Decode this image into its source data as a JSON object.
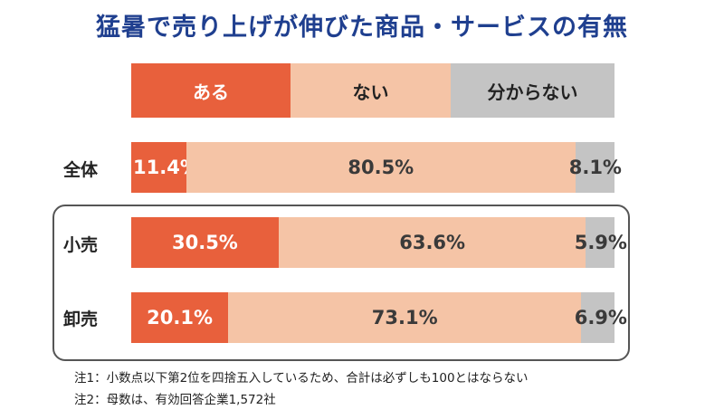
{
  "title": "猛暑で売り上げが伸びた商品・サービスの有無",
  "colors": {
    "yes": "#e8603c",
    "no": "#f5c4a6",
    "unknown": "#c4c4c4"
  },
  "chart_data": {
    "type": "bar",
    "orientation": "horizontal-stacked-100",
    "categories": [
      "全体",
      "小売",
      "卸売"
    ],
    "series": [
      {
        "name": "ある",
        "values": [
          11.4,
          30.5,
          20.1
        ],
        "labels": [
          "11.4%",
          "30.5%",
          "20.1%"
        ]
      },
      {
        "name": "ない",
        "values": [
          80.5,
          63.6,
          73.1
        ],
        "labels": [
          "80.5%",
          "63.6%",
          "73.1%"
        ]
      },
      {
        "name": "分からない",
        "values": [
          8.1,
          5.9,
          6.9
        ],
        "labels": [
          "8.1%",
          "5.9%",
          "6.9%"
        ]
      }
    ],
    "legend_position": "top"
  },
  "notes": [
    "注1：小数点以下第2位を四捨五入しているため、合計は必ずしも100とはならない",
    "注2：母数は、有効回答企業1,572社"
  ]
}
